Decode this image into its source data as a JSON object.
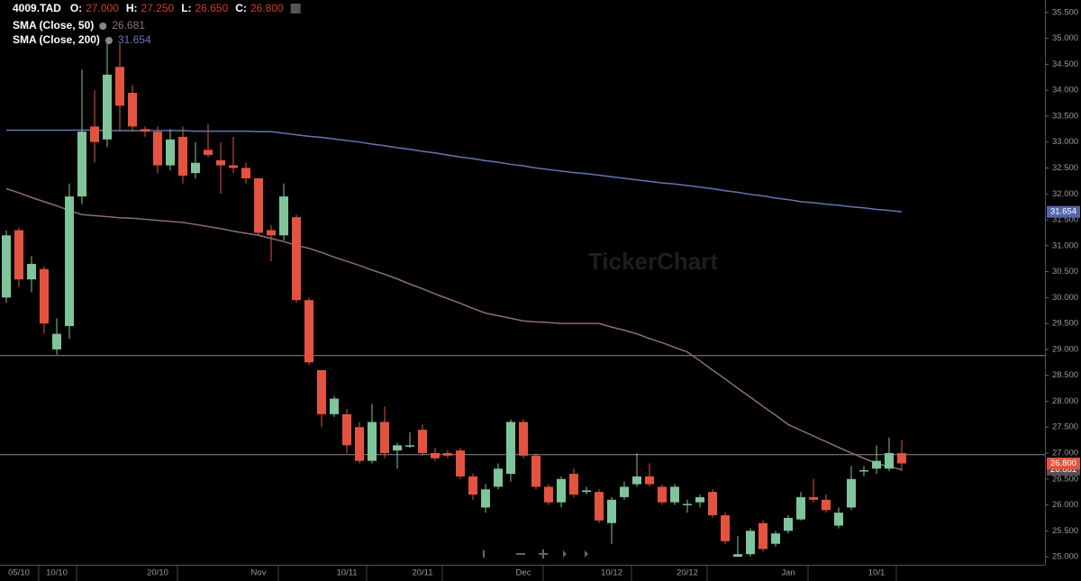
{
  "chart_data": {
    "type": "candlestick",
    "symbol": "4009.TAD",
    "header_fields": [
      {
        "label": "O:",
        "text": "27.000"
      },
      {
        "label": "H:",
        "text": "27.250"
      },
      {
        "label": "L:",
        "text": "26.650"
      },
      {
        "label": "C:",
        "text": "26.800"
      }
    ],
    "watermark": "TickerChart",
    "categories": [
      null,
      "05/10",
      null,
      null,
      "10/10",
      null,
      null,
      null,
      null,
      null,
      null,
      null,
      "20/10",
      null,
      null,
      null,
      null,
      null,
      null,
      null,
      "Nov",
      null,
      null,
      null,
      null,
      null,
      null,
      "10/11",
      null,
      null,
      null,
      null,
      null,
      "20/11",
      null,
      null,
      null,
      null,
      null,
      null,
      null,
      "Dec",
      null,
      null,
      null,
      null,
      null,
      null,
      "10/12",
      null,
      null,
      null,
      null,
      null,
      "20/12",
      null,
      null,
      null,
      null,
      null,
      null,
      null,
      "Jan",
      null,
      null,
      null,
      null,
      null,
      null,
      "10/1",
      null,
      null
    ],
    "candles": {
      "name": "4009.TAD",
      "up_color": "#7fc49a",
      "down_color": "#e4533f",
      "last_label": "26.800",
      "open": [
        30.0,
        31.3,
        30.35,
        30.55,
        29.0,
        29.45,
        31.95,
        33.3,
        33.05,
        34.45,
        33.95,
        33.25,
        33.2,
        32.55,
        33.1,
        32.4,
        32.85,
        32.65,
        32.55,
        32.5,
        32.3,
        31.3,
        31.2,
        31.55,
        29.95,
        28.6,
        27.75,
        27.75,
        27.5,
        26.85,
        27.6,
        27.05,
        27.15,
        27.45,
        27.0,
        27.0,
        27.05,
        26.55,
        25.95,
        26.35,
        26.6,
        27.6,
        26.95,
        26.35,
        26.05,
        26.6,
        26.25,
        26.25,
        25.65,
        26.15,
        26.4,
        26.55,
        26.35,
        26.05,
        26.0,
        26.05,
        26.25,
        25.8,
        25.0,
        25.05,
        25.65,
        25.25,
        25.5,
        25.72,
        26.15,
        26.1,
        25.6,
        25.95,
        26.65,
        26.7,
        26.7,
        27.0
      ],
      "high": [
        31.3,
        31.35,
        30.8,
        30.6,
        29.6,
        32.2,
        34.4,
        34.0,
        35.0,
        34.9,
        34.1,
        33.3,
        33.3,
        33.25,
        33.3,
        33.0,
        33.35,
        33.0,
        33.1,
        32.6,
        32.3,
        31.4,
        32.2,
        31.6,
        30.0,
        28.6,
        28.1,
        27.85,
        27.6,
        27.95,
        27.9,
        27.2,
        27.4,
        27.55,
        27.1,
        27.05,
        27.1,
        26.6,
        26.4,
        26.8,
        27.65,
        27.65,
        27.0,
        26.4,
        26.55,
        26.7,
        26.35,
        26.3,
        26.15,
        26.45,
        27.0,
        26.8,
        26.4,
        26.4,
        26.1,
        26.2,
        26.3,
        25.85,
        25.4,
        25.55,
        25.7,
        25.5,
        25.8,
        26.25,
        26.5,
        26.2,
        25.95,
        26.75,
        26.75,
        27.15,
        27.3,
        27.25
      ],
      "low": [
        29.9,
        30.2,
        30.1,
        29.3,
        28.9,
        29.2,
        31.8,
        32.6,
        32.9,
        33.2,
        33.2,
        33.1,
        32.4,
        32.45,
        32.2,
        32.3,
        32.7,
        32.0,
        32.4,
        32.2,
        31.2,
        30.7,
        31.1,
        29.9,
        28.7,
        27.5,
        27.7,
        27.0,
        26.8,
        26.8,
        26.9,
        26.7,
        27.1,
        26.95,
        26.85,
        26.9,
        26.5,
        26.1,
        25.85,
        26.3,
        26.45,
        26.9,
        26.3,
        26.0,
        25.95,
        26.15,
        26.2,
        25.65,
        25.25,
        26.1,
        26.35,
        26.35,
        26.0,
        26.0,
        25.85,
        25.95,
        25.75,
        25.25,
        25.0,
        25.0,
        25.1,
        25.2,
        25.45,
        25.7,
        26.05,
        25.85,
        25.55,
        25.9,
        26.55,
        26.6,
        26.65,
        26.65
      ],
      "close": [
        31.2,
        30.35,
        30.65,
        29.5,
        29.3,
        31.95,
        33.2,
        33.0,
        34.3,
        33.7,
        33.3,
        33.2,
        32.55,
        33.05,
        32.35,
        32.6,
        32.75,
        32.55,
        32.5,
        32.3,
        31.25,
        31.2,
        31.95,
        29.95,
        28.75,
        27.75,
        28.05,
        27.15,
        26.85,
        27.6,
        27.0,
        27.15,
        27.15,
        27.0,
        26.9,
        26.95,
        26.55,
        26.2,
        26.3,
        26.7,
        27.6,
        26.95,
        26.35,
        26.05,
        26.5,
        26.2,
        26.28,
        25.7,
        26.1,
        26.35,
        26.55,
        26.4,
        26.05,
        26.35,
        26.02,
        26.15,
        25.8,
        25.3,
        25.05,
        25.5,
        25.15,
        25.45,
        25.75,
        26.15,
        26.1,
        25.9,
        25.85,
        26.5,
        26.67,
        26.85,
        27.0,
        26.8
      ]
    },
    "series": [
      {
        "name": "SMA (Close, 50)",
        "color": "#8c6e78",
        "box_color": "#5e4e55",
        "last_label": "26.681",
        "values": [
          32.1,
          32.02,
          31.93,
          31.85,
          31.77,
          31.68,
          31.6,
          31.58,
          31.56,
          31.54,
          31.53,
          31.51,
          31.49,
          31.47,
          31.45,
          31.41,
          31.37,
          31.33,
          31.28,
          31.24,
          31.2,
          31.14,
          31.08,
          31.01,
          30.95,
          30.87,
          30.78,
          30.7,
          30.62,
          30.53,
          30.45,
          30.36,
          30.26,
          30.17,
          30.07,
          29.98,
          29.89,
          29.79,
          29.7,
          29.65,
          29.6,
          29.55,
          29.53,
          29.52,
          29.5,
          29.5,
          29.5,
          29.5,
          29.43,
          29.37,
          29.3,
          29.21,
          29.13,
          29.04,
          28.95,
          28.78,
          28.6,
          28.43,
          28.25,
          28.08,
          27.9,
          27.73,
          27.55,
          27.44,
          27.33,
          27.22,
          27.11,
          27.0,
          26.9,
          26.8,
          26.74,
          26.681
        ]
      },
      {
        "name": "SMA (Close, 200)",
        "color": "#6575b5",
        "box_color": "#5565a8",
        "last_label": "31.654",
        "values": [
          33.23,
          33.23,
          33.23,
          33.23,
          33.23,
          33.23,
          33.23,
          33.23,
          33.22,
          33.22,
          33.22,
          33.22,
          33.22,
          33.22,
          33.22,
          33.21,
          33.21,
          33.21,
          33.21,
          33.21,
          33.2,
          33.2,
          33.17,
          33.14,
          33.11,
          33.09,
          33.06,
          33.03,
          33.0,
          32.96,
          32.93,
          32.89,
          32.86,
          32.82,
          32.79,
          32.75,
          32.71,
          32.68,
          32.64,
          32.61,
          32.57,
          32.54,
          32.5,
          32.47,
          32.44,
          32.41,
          32.39,
          32.36,
          32.33,
          32.3,
          32.27,
          32.24,
          32.21,
          32.19,
          32.16,
          32.13,
          32.1,
          32.06,
          32.03,
          31.99,
          31.96,
          31.92,
          31.89,
          31.85,
          31.83,
          31.8,
          31.78,
          31.75,
          31.73,
          31.7,
          31.68,
          31.654
        ]
      }
    ],
    "hlines": [
      28.88,
      26.97
    ],
    "hline_color": "#8a8a8a",
    "ylim": [
      24.88,
      35.74
    ],
    "yticks": [
      {
        "value": 25,
        "label": "25.000"
      },
      {
        "value": 25.5,
        "label": "25.500"
      },
      {
        "value": 26,
        "label": "26.000"
      },
      {
        "value": 26.5,
        "label": "26.500"
      },
      {
        "value": 27,
        "label": "27.000"
      },
      {
        "value": 27.5,
        "label": "27.500"
      },
      {
        "value": 28,
        "label": "28.000"
      },
      {
        "value": 28.5,
        "label": "28.500"
      },
      {
        "value": 29,
        "label": "29.000"
      },
      {
        "value": 29.5,
        "label": "29.500"
      },
      {
        "value": 30,
        "label": "30.000"
      },
      {
        "value": 30.5,
        "label": "30.500"
      },
      {
        "value": 31,
        "label": "31.000"
      },
      {
        "value": 31.5,
        "label": "31.500"
      },
      {
        "value": 32,
        "label": "32.000"
      },
      {
        "value": 32.5,
        "label": "32.500"
      },
      {
        "value": 33,
        "label": "33.000"
      },
      {
        "value": 33.5,
        "label": "33.500"
      },
      {
        "value": 34,
        "label": "34.000"
      },
      {
        "value": 34.5,
        "label": "34.500"
      },
      {
        "value": 35,
        "label": "35.000"
      },
      {
        "value": 35.5,
        "label": "35.500"
      }
    ],
    "grid": false
  }
}
